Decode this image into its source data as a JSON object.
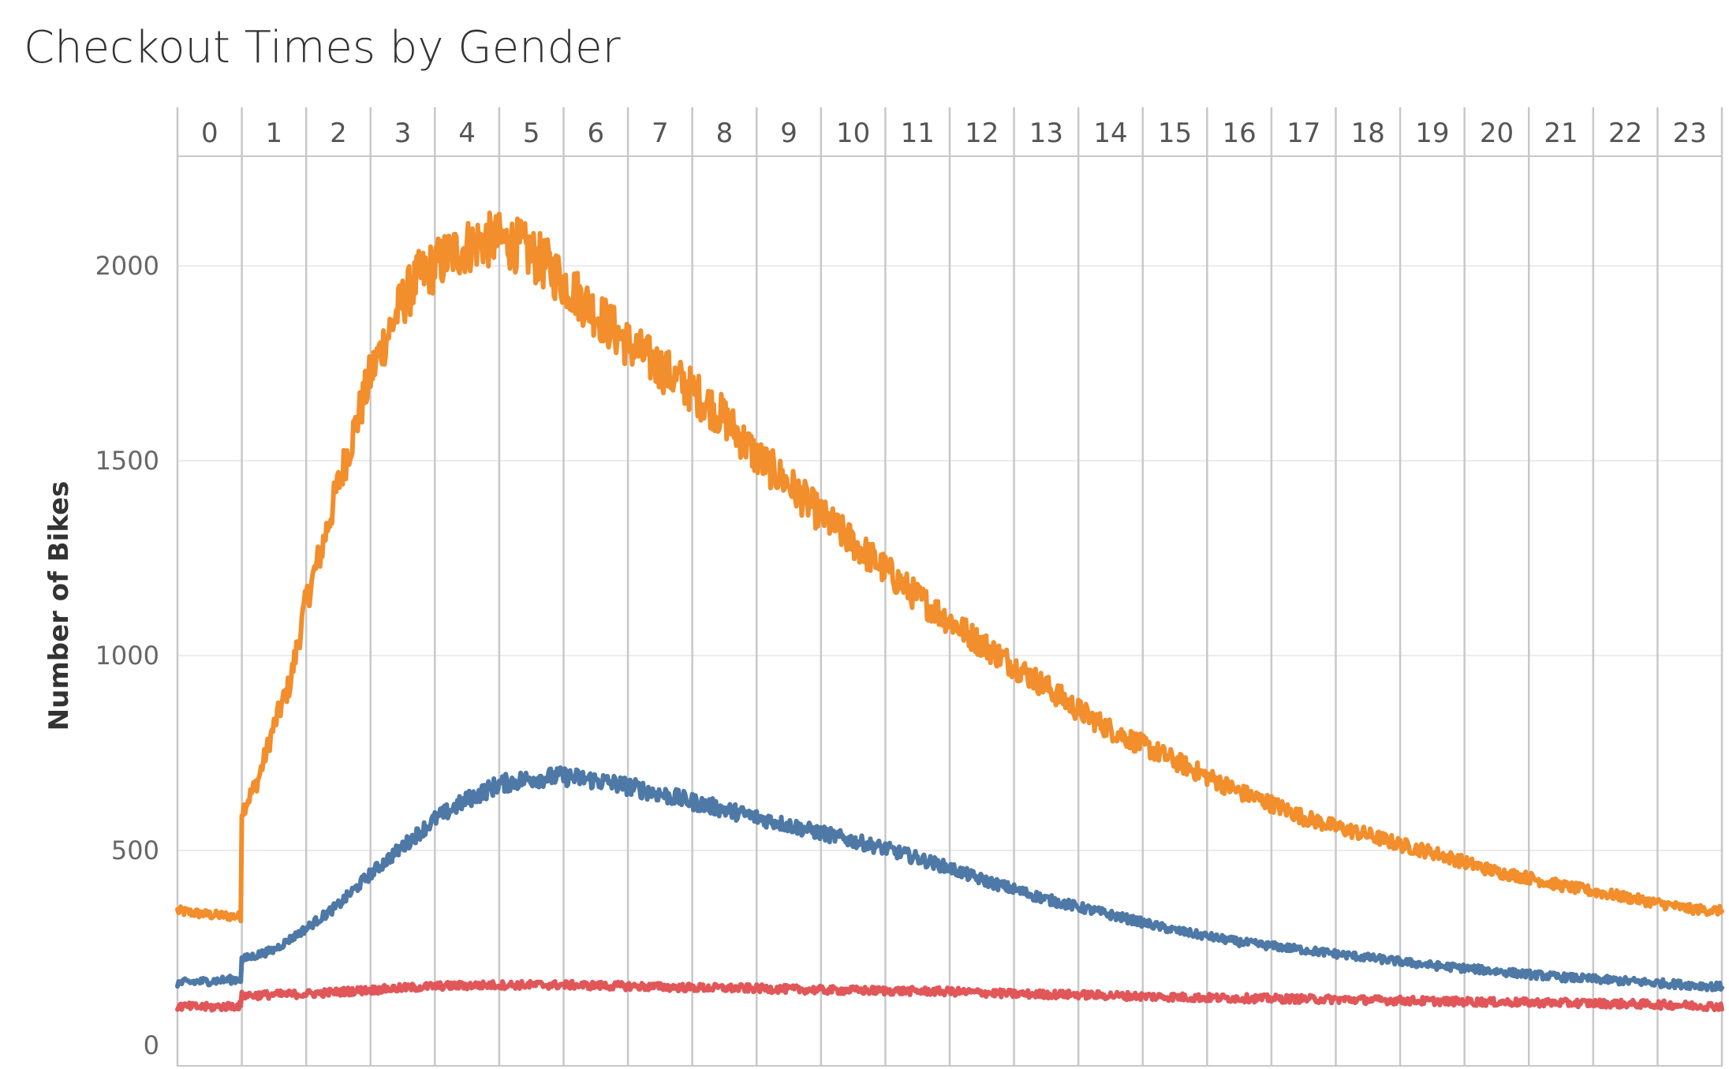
{
  "chart_data": {
    "type": "line",
    "title": "Checkout Times by Gender",
    "ylabel": "Number of Bikes",
    "xlabel": "",
    "x_header_labels": [
      "0",
      "1",
      "2",
      "3",
      "4",
      "5",
      "6",
      "7",
      "8",
      "9",
      "10",
      "11",
      "12",
      "13",
      "14",
      "15",
      "16",
      "17",
      "18",
      "19",
      "20",
      "21",
      "22",
      "23"
    ],
    "ylim": [
      0,
      2250
    ],
    "y_ticks": [
      0,
      500,
      1000,
      1500,
      2000
    ],
    "grid": true,
    "legend": "none",
    "x_unit": "hour of day (pane start)",
    "series": [
      {
        "color": "#F28E2B",
        "x": [
          0.0,
          0.5,
          0.99,
          1.0,
          1.25,
          1.5,
          1.75,
          2.0,
          2.25,
          2.5,
          2.75,
          3.0,
          3.25,
          3.5,
          3.75,
          4.0,
          4.25,
          4.5,
          4.75,
          5.0,
          5.25,
          5.5,
          5.75,
          6.0,
          6.25,
          6.5,
          6.75,
          7.0,
          7.5,
          8.0,
          8.5,
          9.0,
          9.5,
          10.0,
          10.5,
          11.0,
          11.5,
          12.0,
          12.5,
          13.0,
          13.5,
          14.0,
          14.5,
          15.0,
          15.5,
          16.0,
          16.5,
          17.0,
          17.5,
          18.0,
          18.5,
          19.0,
          19.5,
          20.0,
          20.5,
          21.0,
          21.5,
          22.0,
          22.5,
          23.0,
          23.5,
          24.0
        ],
        "values": [
          345,
          335,
          330,
          600,
          680,
          820,
          930,
          1140,
          1280,
          1440,
          1580,
          1720,
          1820,
          1910,
          1970,
          2000,
          2030,
          2050,
          2065,
          2065,
          2055,
          2030,
          2000,
          1960,
          1920,
          1880,
          1840,
          1800,
          1740,
          1680,
          1610,
          1510,
          1440,
          1360,
          1290,
          1220,
          1150,
          1090,
          1030,
          975,
          920,
          860,
          810,
          770,
          730,
          690,
          650,
          620,
          585,
          560,
          540,
          515,
          495,
          470,
          445,
          430,
          410,
          395,
          380,
          365,
          350,
          345
        ]
      },
      {
        "color": "#4E79A7",
        "x": [
          0.0,
          0.5,
          0.99,
          1.0,
          1.5,
          2.0,
          2.5,
          3.0,
          3.5,
          4.0,
          4.5,
          5.0,
          5.5,
          6.0,
          6.5,
          7.0,
          7.5,
          8.0,
          8.5,
          9.0,
          9.5,
          10.0,
          10.5,
          11.0,
          11.5,
          12.0,
          12.5,
          13.0,
          13.5,
          14.0,
          14.5,
          15.0,
          15.5,
          16.0,
          16.5,
          17.0,
          17.5,
          18.0,
          18.5,
          19.0,
          19.5,
          20.0,
          20.5,
          21.0,
          21.5,
          22.0,
          22.5,
          23.0,
          23.5,
          24.0
        ],
        "values": [
          160,
          165,
          170,
          220,
          245,
          300,
          360,
          440,
          510,
          580,
          630,
          670,
          685,
          690,
          680,
          665,
          645,
          625,
          605,
          585,
          565,
          545,
          525,
          505,
          480,
          455,
          425,
          400,
          375,
          355,
          335,
          315,
          295,
          280,
          265,
          255,
          245,
          235,
          225,
          215,
          205,
          198,
          190,
          182,
          175,
          170,
          165,
          160,
          155,
          150
        ]
      },
      {
        "color": "#E15759",
        "x": [
          0.0,
          0.5,
          0.99,
          1.0,
          2.0,
          3.0,
          4.0,
          5.0,
          6.0,
          7.0,
          8.0,
          9.0,
          10.0,
          11.0,
          12.0,
          13.0,
          14.0,
          15.0,
          16.0,
          17.0,
          18.0,
          19.0,
          20.0,
          21.0,
          22.0,
          23.0,
          24.0
        ],
        "values": [
          100,
          98,
          102,
          128,
          132,
          142,
          152,
          155,
          155,
          152,
          148,
          146,
          142,
          140,
          138,
          132,
          130,
          126,
          122,
          120,
          118,
          115,
          112,
          110,
          108,
          105,
          100
        ]
      }
    ]
  }
}
